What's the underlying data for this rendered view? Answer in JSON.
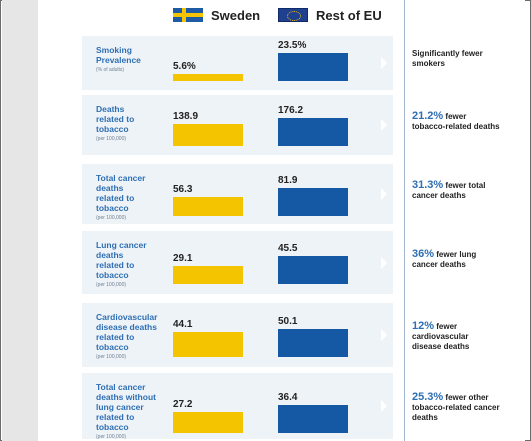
{
  "legend": {
    "sweden_label": "Sweden",
    "eu_label": "Rest of EU"
  },
  "top_right_fragment": "",
  "chart_data": {
    "type": "bar",
    "series": [
      {
        "name": "Sweden",
        "color": "#f5c400"
      },
      {
        "name": "Rest of EU",
        "color": "#1558a4"
      }
    ],
    "rows": [
      {
        "label": "Smoking\nPrevalence",
        "unit": "(% of adults)",
        "sweden": 5.6,
        "eu": 23.5,
        "sweden_text": "5.6%",
        "eu_text": "23.5%",
        "summary_pct": "",
        "summary_text": "Significantly fewer smokers"
      },
      {
        "label": "Deaths\nrelated to\ntobacco",
        "unit": "(per 100,000)",
        "sweden": 138.9,
        "eu": 176.2,
        "sweden_text": "138.9",
        "eu_text": "176.2",
        "summary_pct": "21.2%",
        "summary_text": " fewer tobacco-related deaths"
      },
      {
        "label": "Total cancer\ndeaths\nrelated to\ntobacco",
        "unit": "(per 100,000)",
        "sweden": 56.3,
        "eu": 81.9,
        "sweden_text": "56.3",
        "eu_text": "81.9",
        "summary_pct": "31.3%",
        "summary_text": " fewer total cancer deaths"
      },
      {
        "label": "Lung cancer\ndeaths\nrelated to\ntobacco",
        "unit": "(per 100,000)",
        "sweden": 29.1,
        "eu": 45.5,
        "sweden_text": "29.1",
        "eu_text": "45.5",
        "summary_pct": "36%",
        "summary_text": " fewer lung cancer deaths"
      },
      {
        "label": "Cardiovascular\ndisease deaths\nrelated to\ntobacco",
        "unit": "(per 100,000)",
        "sweden": 44.1,
        "eu": 50.1,
        "sweden_text": "44.1",
        "eu_text": "50.1",
        "summary_pct": "12%",
        "summary_text": " fewer cardiovascular disease deaths"
      },
      {
        "label": "Total cancer\ndeaths without\nlung cancer\nrelated to\ntobacco",
        "unit": "(per 100,000)",
        "sweden": 27.2,
        "eu": 36.4,
        "sweden_text": "27.2",
        "eu_text": "36.4",
        "summary_pct": "25.3%",
        "summary_text": " fewer other tobacco-related cancer deaths"
      }
    ]
  }
}
